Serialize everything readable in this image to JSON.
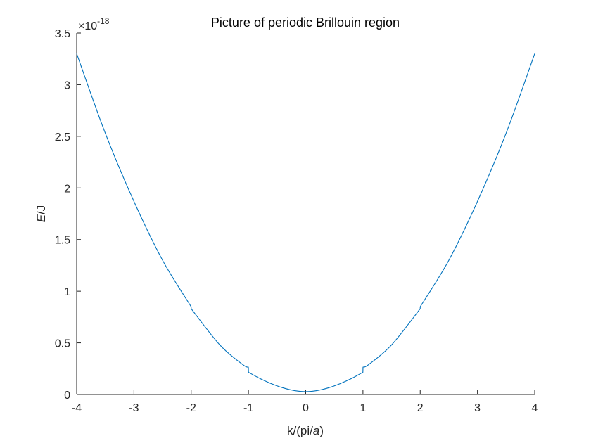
{
  "chart_data": {
    "type": "line",
    "title": "Picture of periodic Brillouin region",
    "xlabel": {
      "prefix": "k/(pi/",
      "italic": "a",
      "suffix": ")"
    },
    "ylabel": {
      "italic": "E",
      "suffix": "/J"
    },
    "y_exponent": {
      "prefix": "×10",
      "power": "-18"
    },
    "xlim": [
      -4,
      4
    ],
    "ylim": [
      0,
      3.5
    ],
    "xticks": [
      -4,
      -3,
      -2,
      -1,
      0,
      1,
      2,
      3,
      4
    ],
    "xtick_labels": [
      "-4",
      "-3",
      "-2",
      "-1",
      "0",
      "1",
      "2",
      "3",
      "4"
    ],
    "yticks": [
      0,
      0.5,
      1,
      1.5,
      2,
      2.5,
      3,
      3.5
    ],
    "ytick_labels": [
      "0",
      "0.5",
      "1",
      "1.5",
      "2",
      "2.5",
      "3",
      "3.5"
    ],
    "grid": false,
    "series": [
      {
        "color": "#0072BD",
        "x": [
          -4,
          -3.5,
          -3,
          -2.5,
          -2.001,
          -1.999,
          -1.5,
          -1.1,
          -1.001,
          -0.999,
          -0.8,
          -0.6,
          -0.4,
          -0.2,
          0,
          0.2,
          0.4,
          0.6,
          0.8,
          0.999,
          1.001,
          1.1,
          1.5,
          1.999,
          2.001,
          2.5,
          3,
          3.5,
          4
        ],
        "y": [
          3.3,
          2.53,
          1.87,
          1.3,
          0.85,
          0.83,
          0.48,
          0.29,
          0.265,
          0.215,
          0.155,
          0.105,
          0.065,
          0.038,
          0.028,
          0.038,
          0.065,
          0.105,
          0.155,
          0.215,
          0.265,
          0.29,
          0.48,
          0.83,
          0.85,
          1.3,
          1.87,
          2.53,
          3.3
        ]
      }
    ]
  }
}
